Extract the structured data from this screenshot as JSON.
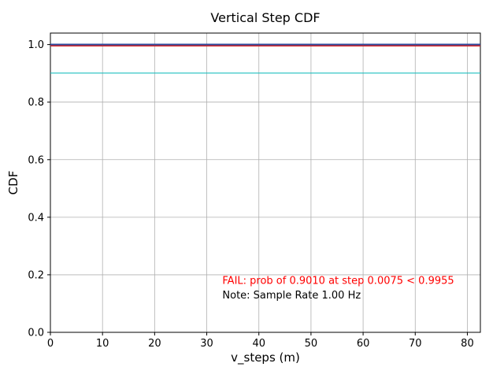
{
  "figure": {
    "background": "#ffffff",
    "axes_edge_color": "#000000",
    "grid_color": "#b0b0b0"
  },
  "chart_data": {
    "type": "line",
    "title": "Vertical Step CDF",
    "xlabel": "v_steps (m)",
    "ylabel": "CDF",
    "xlim": [
      0,
      82.5
    ],
    "ylim": [
      0,
      1.04
    ],
    "xticks": [
      0,
      10,
      20,
      30,
      40,
      50,
      60,
      70,
      80
    ],
    "yticks": [
      0.0,
      0.2,
      0.4,
      0.6,
      0.8,
      1.0
    ],
    "grid": true,
    "legend": "none",
    "series": [
      {
        "name": "cdf-curve",
        "color": "#2f4b9e",
        "width": 2.2,
        "x": [
          0,
          82.5
        ],
        "y": [
          1.0,
          1.0
        ]
      },
      {
        "name": "required-probability-line",
        "color": "#d62728",
        "width": 1.5,
        "x": [
          0,
          82.5
        ],
        "y": [
          0.9955,
          0.9955
        ]
      },
      {
        "name": "achieved-probability-line",
        "color": "#1fbfbf",
        "width": 1.2,
        "x": [
          0,
          82.5
        ],
        "y": [
          0.901,
          0.901
        ]
      }
    ],
    "annotations": [
      {
        "name": "fail-message",
        "text": "FAIL: prob of 0.9010 at step 0.0075 < 0.9955",
        "x": 33,
        "y": 0.168,
        "color": "#ff0000"
      },
      {
        "name": "sample-rate-note",
        "text": "Note: Sample Rate 1.00 Hz",
        "x": 33,
        "y": 0.118,
        "color": "#000000"
      }
    ]
  }
}
